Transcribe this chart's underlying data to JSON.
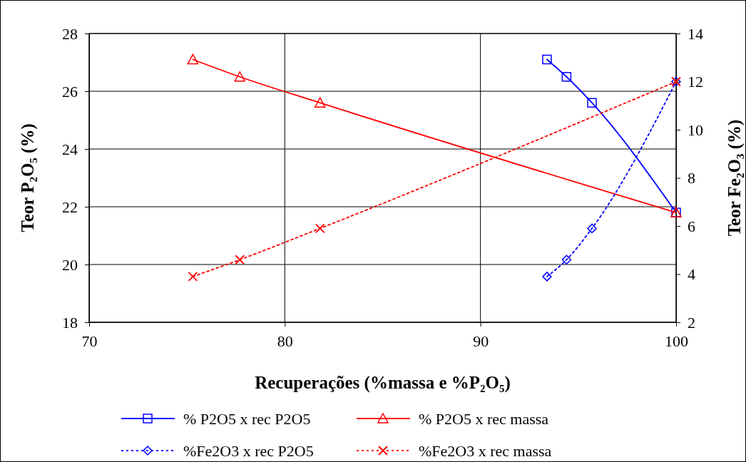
{
  "chart_data": {
    "type": "line",
    "xlabel": "Recuperações (%massa e %P₂O₅)",
    "ylabel": "Teor P₂O₅ (%)",
    "y2label": "Teor Fe₂O₃ (%)",
    "xlim": [
      70,
      100
    ],
    "xticks": [
      70,
      80,
      90,
      100
    ],
    "ylim": [
      18,
      28
    ],
    "yticks": [
      18,
      20,
      22,
      24,
      26,
      28
    ],
    "y2lim": [
      2,
      14
    ],
    "y2ticks": [
      2,
      4,
      6,
      8,
      10,
      12,
      14
    ],
    "grid": true,
    "legend": "bottom",
    "series": [
      {
        "name": "% P2O5 x rec P2O5",
        "color": "#0000ff",
        "x": [
          93.4,
          94.4,
          95.7,
          100
        ],
        "values": [
          27.1,
          26.5,
          25.6,
          21.8
        ],
        "marker": "square",
        "line_style": "solid"
      },
      {
        "name": "% P2O5 x rec massa",
        "color": "#ff0000",
        "x": [
          75.3,
          77.7,
          81.8,
          100
        ],
        "values": [
          27.1,
          26.5,
          25.6,
          21.8
        ],
        "marker": "triangle",
        "line_style": "solid"
      },
      {
        "name": "%Fe2O3 x rec P2O5",
        "color": "#0000ff",
        "x": [
          93.4,
          94.4,
          95.7,
          100
        ],
        "values": [
          3.9,
          4.6,
          5.9,
          12.0
        ],
        "marker": "diamond",
        "line_style": "dotted",
        "axis": "y2"
      },
      {
        "name": "%Fe2O3 x rec massa",
        "color": "#ff0000",
        "x": [
          75.3,
          77.7,
          81.8,
          100
        ],
        "values": [
          3.9,
          4.6,
          5.9,
          12.0
        ],
        "marker": "cross",
        "line_style": "dotted",
        "axis": "y2"
      }
    ]
  }
}
